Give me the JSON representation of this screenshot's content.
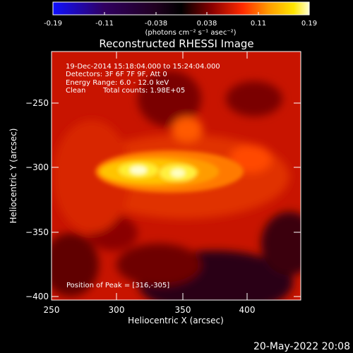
{
  "colorbar": {
    "ticks": [
      "-0.19",
      "-0.11",
      "-0.038",
      "0.038",
      "0.11",
      "0.19"
    ],
    "unit_label": "(photons cm⁻² s⁻¹ asec⁻²)",
    "colormap_stops": [
      "#1010ff",
      "#300060",
      "#200020",
      "#000000",
      "#8a0000",
      "#ff2a00",
      "#ff9a00",
      "#ffe600",
      "#ffffd0"
    ]
  },
  "chart_data": {
    "type": "heatmap",
    "title": "Reconstructed RHESSI Image",
    "xlabel": "Heliocentric X (arcsec)",
    "ylabel": "Heliocentric Y (arcsec)",
    "xlim": [
      250,
      445
    ],
    "ylim": [
      -403,
      -213
    ],
    "xticks": [
      250,
      300,
      350,
      400
    ],
    "yticks": [
      -250,
      -300,
      -350,
      -400
    ],
    "xtick_labels": [
      "250",
      "300",
      "350",
      "400"
    ],
    "ytick_labels": [
      "−250",
      "−300",
      "−350",
      "−400"
    ],
    "value_range": [
      -0.19,
      0.19
    ],
    "sources": [
      {
        "x": 316,
        "y": -305,
        "peak": 0.19
      },
      {
        "x": 343,
        "y": -307,
        "peak": 0.17
      },
      {
        "x": 372,
        "y": -298,
        "peak": 0.07
      },
      {
        "x": 350,
        "y": -275,
        "peak": 0.035
      }
    ],
    "annotations": {
      "time_range": "19-Dec-2014 15:18:04.000 to 15:24:04.000",
      "detectors": "Detectors: 3F 6F 7F 9F, Att 0",
      "energy": "Energy Range: 6.0 - 12.0 keV",
      "method": "Clean",
      "counts": "Total counts: 1.98E+05",
      "peak": "Position of Peak = [316,-305]"
    }
  },
  "footer": {
    "date": "20-May-2022 20:08"
  }
}
